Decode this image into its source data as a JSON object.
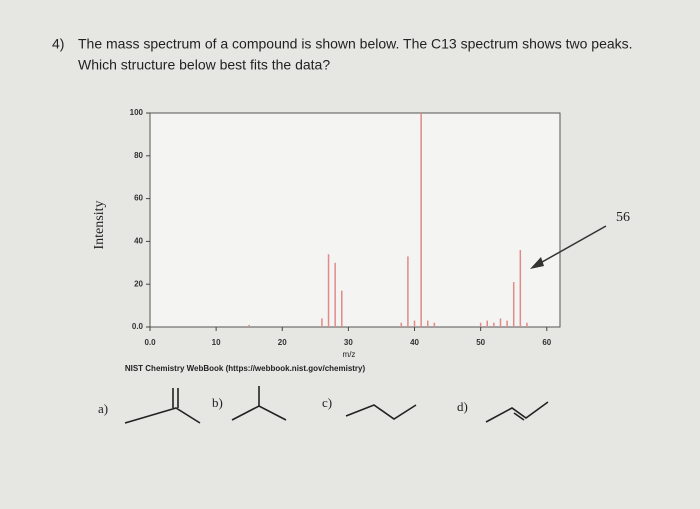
{
  "question": {
    "number": "4)",
    "line1": "The mass spectrum of a compound is shown below. The C13 spectrum shows two peaks.",
    "line2": "Which structure below best fits the data?"
  },
  "chart_data": {
    "type": "stick",
    "x_label": "m/z",
    "y_label": "Intensity",
    "source": "NIST Chemistry WebBook (https://webbook.nist.gov/chemistry)",
    "annotation": "56",
    "x": [
      15,
      26,
      27,
      28,
      29,
      38,
      39,
      40,
      41,
      42,
      43,
      50,
      51,
      52,
      53,
      54,
      55,
      56,
      57
    ],
    "values": [
      1,
      4,
      34,
      30,
      17,
      2,
      33,
      3,
      100,
      3,
      2,
      2,
      3,
      2,
      4,
      3,
      21,
      36,
      2
    ],
    "color": "#e08a8a",
    "xlim": [
      0,
      62
    ],
    "ylim": [
      0,
      100
    ],
    "xticks": [
      {
        "value": 0,
        "label": "0.0"
      },
      10,
      20,
      30,
      40,
      50,
      60
    ],
    "yticks": [
      {
        "value": 0,
        "label": "0.0"
      },
      20,
      40,
      60,
      80,
      100
    ]
  },
  "options": [
    "a)",
    "b)",
    "c)",
    "d)"
  ]
}
